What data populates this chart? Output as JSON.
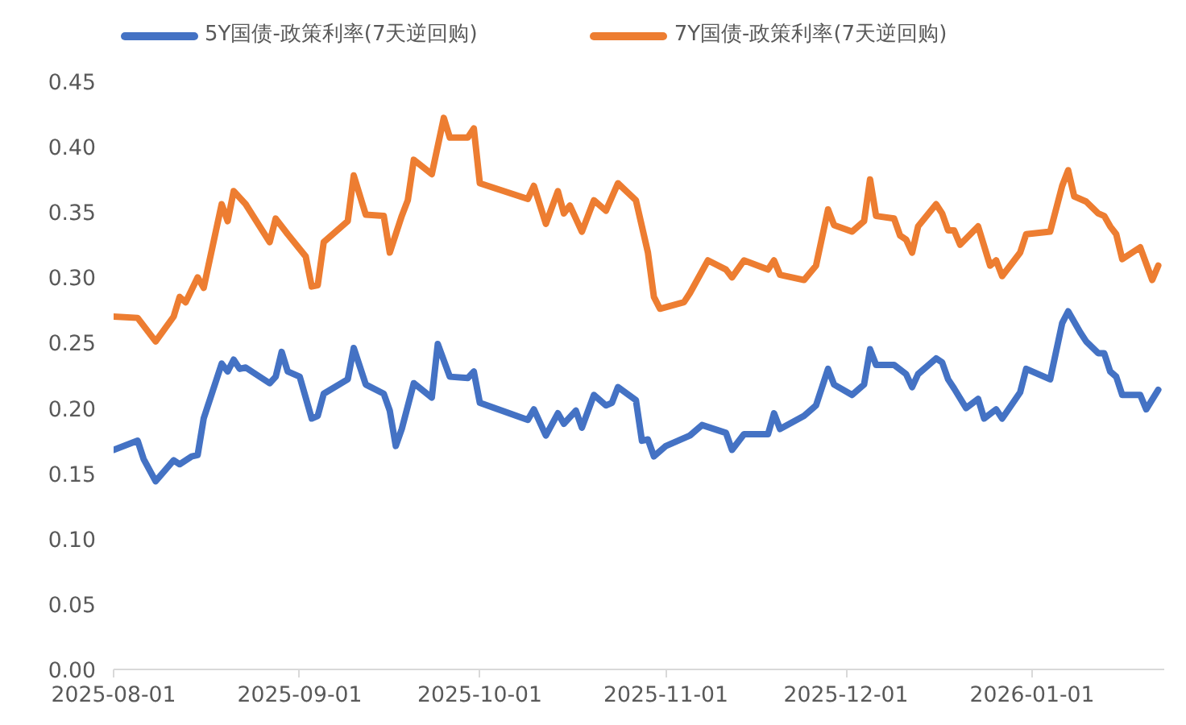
{
  "chart_data": {
    "type": "line",
    "legend": "top",
    "grid": false,
    "marker": "none",
    "line_style": "solid",
    "xlim": [
      "2025-08-01",
      "2026-01-23"
    ],
    "xticks": [
      {
        "value": "2025-08-01",
        "label": "2025-08-01"
      },
      {
        "value": "2025-09-01",
        "label": "2025-09-01"
      },
      {
        "value": "2025-10-01",
        "label": "2025-10-01"
      },
      {
        "value": "2025-11-01",
        "label": "2025-11-01"
      },
      {
        "value": "2025-12-01",
        "label": "2025-12-01"
      },
      {
        "value": "2026-01-01",
        "label": "2026-01-01"
      }
    ],
    "ylim": [
      0,
      0.45
    ],
    "yticks": [
      {
        "value": 0,
        "label": "0.00"
      },
      {
        "value": 0.05,
        "label": "0.05"
      },
      {
        "value": 0.1,
        "label": "0.10"
      },
      {
        "value": 0.15,
        "label": "0.15"
      },
      {
        "value": 0.2,
        "label": "0.20"
      },
      {
        "value": 0.25,
        "label": "0.25"
      },
      {
        "value": 0.3,
        "label": "0.30"
      },
      {
        "value": 0.35,
        "label": "0.35"
      },
      {
        "value": 0.4,
        "label": "0.40"
      },
      {
        "value": 0.45,
        "label": "0.45"
      }
    ],
    "series": [
      {
        "name": "5Y国债-政策利率(7天逆回购)",
        "color": "#4472c4",
        "x": [
          "2025-08-01",
          "2025-08-05",
          "2025-08-06",
          "2025-08-08",
          "2025-08-11",
          "2025-08-12",
          "2025-08-14",
          "2025-08-15",
          "2025-08-16",
          "2025-08-19",
          "2025-08-20",
          "2025-08-21",
          "2025-08-22",
          "2025-08-23",
          "2025-08-27",
          "2025-08-28",
          "2025-08-29",
          "2025-08-30",
          "2025-09-01",
          "2025-09-03",
          "2025-09-04",
          "2025-09-05",
          "2025-09-09",
          "2025-09-10",
          "2025-09-12",
          "2025-09-15",
          "2025-09-16",
          "2025-09-17",
          "2025-09-18",
          "2025-09-20",
          "2025-09-23",
          "2025-09-24",
          "2025-09-26",
          "2025-09-29",
          "2025-09-30",
          "2025-10-01",
          "2025-10-09",
          "2025-10-10",
          "2025-10-12",
          "2025-10-14",
          "2025-10-15",
          "2025-10-17",
          "2025-10-18",
          "2025-10-20",
          "2025-10-22",
          "2025-10-23",
          "2025-10-24",
          "2025-10-27",
          "2025-10-28",
          "2025-10-29",
          "2025-10-30",
          "2025-11-01",
          "2025-11-04",
          "2025-11-05",
          "2025-11-07",
          "2025-11-11",
          "2025-11-12",
          "2025-11-14",
          "2025-11-18",
          "2025-11-19",
          "2025-11-20",
          "2025-11-24",
          "2025-11-26",
          "2025-11-28",
          "2025-11-29",
          "2025-12-02",
          "2025-12-04",
          "2025-12-05",
          "2025-12-06",
          "2025-12-09",
          "2025-12-11",
          "2025-12-12",
          "2025-12-13",
          "2025-12-16",
          "2025-12-17",
          "2025-12-18",
          "2025-12-19",
          "2025-12-21",
          "2025-12-23",
          "2025-12-24",
          "2025-12-26",
          "2025-12-27",
          "2025-12-30",
          "2025-12-31",
          "2026-01-04",
          "2026-01-06",
          "2026-01-07",
          "2026-01-09",
          "2026-01-10",
          "2026-01-12",
          "2026-01-13",
          "2026-01-14",
          "2026-01-15",
          "2026-01-16",
          "2026-01-19",
          "2026-01-20",
          "2026-01-22"
        ],
        "values": [
          0.168,
          0.175,
          0.161,
          0.144,
          0.16,
          0.157,
          0.163,
          0.164,
          0.192,
          0.234,
          0.228,
          0.237,
          0.23,
          0.231,
          0.219,
          0.224,
          0.243,
          0.228,
          0.224,
          0.192,
          0.194,
          0.211,
          0.222,
          0.246,
          0.218,
          0.211,
          0.198,
          0.171,
          0.184,
          0.219,
          0.208,
          0.249,
          0.224,
          0.223,
          0.228,
          0.204,
          0.191,
          0.199,
          0.179,
          0.196,
          0.188,
          0.198,
          0.185,
          0.21,
          0.202,
          0.204,
          0.216,
          0.206,
          0.175,
          0.176,
          0.163,
          0.171,
          0.177,
          0.179,
          0.187,
          0.181,
          0.168,
          0.18,
          0.18,
          0.196,
          0.184,
          0.194,
          0.202,
          0.23,
          0.218,
          0.21,
          0.218,
          0.245,
          0.233,
          0.233,
          0.226,
          0.216,
          0.226,
          0.238,
          0.235,
          0.222,
          0.215,
          0.2,
          0.207,
          0.192,
          0.199,
          0.192,
          0.212,
          0.23,
          0.222,
          0.265,
          0.274,
          0.258,
          0.251,
          0.242,
          0.242,
          0.228,
          0.224,
          0.21,
          0.21,
          0.199,
          0.214
        ]
      },
      {
        "name": "7Y国债-政策利率(7天逆回购)",
        "color": "#ed7d31",
        "x": [
          "2025-08-01",
          "2025-08-05",
          "2025-08-08",
          "2025-08-11",
          "2025-08-12",
          "2025-08-13",
          "2025-08-15",
          "2025-08-16",
          "2025-08-19",
          "2025-08-20",
          "2025-08-21",
          "2025-08-23",
          "2025-08-27",
          "2025-08-28",
          "2025-08-30",
          "2025-09-02",
          "2025-09-03",
          "2025-09-04",
          "2025-09-05",
          "2025-09-09",
          "2025-09-10",
          "2025-09-12",
          "2025-09-15",
          "2025-09-16",
          "2025-09-18",
          "2025-09-19",
          "2025-09-20",
          "2025-09-23",
          "2025-09-25",
          "2025-09-26",
          "2025-09-29",
          "2025-09-30",
          "2025-10-01",
          "2025-10-09",
          "2025-10-10",
          "2025-10-12",
          "2025-10-14",
          "2025-10-15",
          "2025-10-16",
          "2025-10-18",
          "2025-10-20",
          "2025-10-22",
          "2025-10-24",
          "2025-10-27",
          "2025-10-29",
          "2025-10-30",
          "2025-10-31",
          "2025-11-04",
          "2025-11-05",
          "2025-11-08",
          "2025-11-11",
          "2025-11-12",
          "2025-11-14",
          "2025-11-18",
          "2025-11-19",
          "2025-11-20",
          "2025-11-24",
          "2025-11-26",
          "2025-11-28",
          "2025-11-29",
          "2025-12-02",
          "2025-12-04",
          "2025-12-05",
          "2025-12-06",
          "2025-12-09",
          "2025-12-10",
          "2025-12-11",
          "2025-12-12",
          "2025-12-13",
          "2025-12-16",
          "2025-12-17",
          "2025-12-18",
          "2025-12-19",
          "2025-12-20",
          "2025-12-23",
          "2025-12-25",
          "2025-12-26",
          "2025-12-27",
          "2025-12-30",
          "2025-12-31",
          "2026-01-04",
          "2026-01-06",
          "2026-01-07",
          "2026-01-08",
          "2026-01-10",
          "2026-01-12",
          "2026-01-13",
          "2026-01-14",
          "2026-01-15",
          "2026-01-16",
          "2026-01-19",
          "2026-01-21",
          "2026-01-22"
        ],
        "values": [
          0.27,
          0.269,
          0.251,
          0.27,
          0.285,
          0.281,
          0.3,
          0.292,
          0.356,
          0.343,
          0.366,
          0.356,
          0.327,
          0.345,
          0.333,
          0.316,
          0.293,
          0.294,
          0.327,
          0.343,
          0.378,
          0.348,
          0.347,
          0.319,
          0.347,
          0.359,
          0.39,
          0.379,
          0.422,
          0.407,
          0.407,
          0.414,
          0.372,
          0.36,
          0.37,
          0.341,
          0.366,
          0.349,
          0.355,
          0.335,
          0.359,
          0.351,
          0.372,
          0.359,
          0.319,
          0.285,
          0.276,
          0.281,
          0.288,
          0.313,
          0.306,
          0.3,
          0.313,
          0.306,
          0.313,
          0.302,
          0.298,
          0.309,
          0.352,
          0.34,
          0.335,
          0.343,
          0.375,
          0.347,
          0.345,
          0.332,
          0.329,
          0.319,
          0.339,
          0.356,
          0.349,
          0.336,
          0.336,
          0.325,
          0.339,
          0.309,
          0.313,
          0.301,
          0.319,
          0.333,
          0.335,
          0.37,
          0.382,
          0.362,
          0.358,
          0.349,
          0.347,
          0.339,
          0.333,
          0.314,
          0.323,
          0.298,
          0.309
        ]
      }
    ]
  }
}
